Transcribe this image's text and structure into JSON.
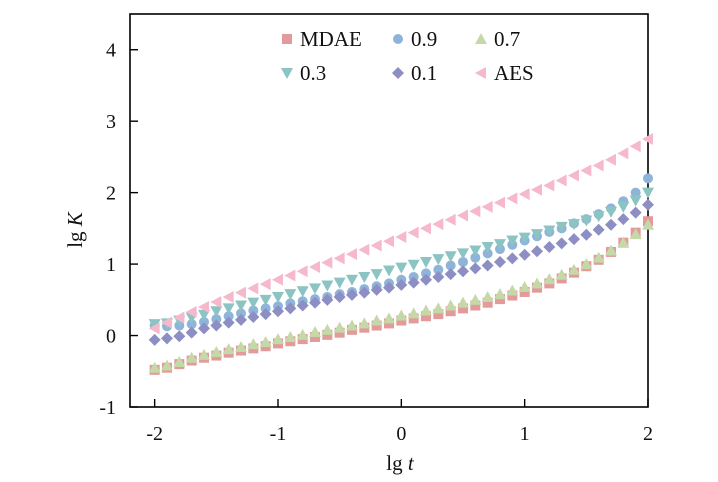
{
  "chart_data": {
    "type": "scatter",
    "title": "",
    "xlabel": {
      "text": "lg ",
      "var": "t"
    },
    "ylabel": {
      "text": "lg ",
      "var": "K"
    },
    "xlim": [
      -2.2,
      2
    ],
    "ylim": [
      -1,
      4.5
    ],
    "xticks": [
      -2,
      -1,
      0,
      1,
      2
    ],
    "xtick_labels": [
      "-2",
      "-1",
      "0",
      "1",
      "2"
    ],
    "yticks": [
      -1,
      0,
      1,
      2,
      3,
      4
    ],
    "ytick_labels": [
      "-1",
      "0",
      "1",
      "2",
      "3",
      "4"
    ],
    "grid": false,
    "legend": "top-center",
    "x": [
      -2.0,
      -1.9,
      -1.8,
      -1.7,
      -1.6,
      -1.5,
      -1.4,
      -1.3,
      -1.2,
      -1.1,
      -1.0,
      -0.9,
      -0.8,
      -0.7,
      -0.6,
      -0.5,
      -0.4,
      -0.3,
      -0.2,
      -0.1,
      0.0,
      0.1,
      0.2,
      0.3,
      0.4,
      0.5,
      0.6,
      0.7,
      0.8,
      0.9,
      1.0,
      1.1,
      1.2,
      1.3,
      1.4,
      1.5,
      1.6,
      1.7,
      1.8,
      1.9,
      2.0
    ],
    "series": [
      {
        "name": "MDAE",
        "marker": "square",
        "color": "#e39a9a",
        "values": [
          -0.48,
          -0.45,
          -0.4,
          -0.35,
          -0.31,
          -0.28,
          -0.24,
          -0.21,
          -0.18,
          -0.15,
          -0.11,
          -0.08,
          -0.05,
          -0.02,
          0.01,
          0.04,
          0.08,
          0.11,
          0.14,
          0.17,
          0.21,
          0.24,
          0.27,
          0.3,
          0.34,
          0.38,
          0.42,
          0.46,
          0.51,
          0.56,
          0.61,
          0.67,
          0.73,
          0.8,
          0.88,
          0.97,
          1.06,
          1.17,
          1.3,
          1.44,
          1.6
        ]
      },
      {
        "name": "0.9",
        "marker": "circle",
        "color": "#8fb4d9",
        "values": [
          0.14,
          0.13,
          0.14,
          0.16,
          0.19,
          0.23,
          0.27,
          0.31,
          0.35,
          0.38,
          0.41,
          0.45,
          0.48,
          0.51,
          0.54,
          0.58,
          0.61,
          0.65,
          0.69,
          0.73,
          0.78,
          0.82,
          0.87,
          0.92,
          0.98,
          1.03,
          1.09,
          1.15,
          1.21,
          1.27,
          1.33,
          1.39,
          1.45,
          1.5,
          1.57,
          1.63,
          1.7,
          1.78,
          1.88,
          2.0,
          2.2
        ]
      },
      {
        "name": "0.7",
        "marker": "triangle-up",
        "color": "#c5d9a8",
        "values": [
          -0.45,
          -0.42,
          -0.37,
          -0.31,
          -0.27,
          -0.23,
          -0.19,
          -0.16,
          -0.12,
          -0.09,
          -0.05,
          -0.02,
          0.01,
          0.05,
          0.08,
          0.11,
          0.14,
          0.17,
          0.21,
          0.24,
          0.28,
          0.31,
          0.35,
          0.38,
          0.42,
          0.46,
          0.5,
          0.54,
          0.58,
          0.63,
          0.68,
          0.73,
          0.79,
          0.85,
          0.92,
          1.0,
          1.09,
          1.19,
          1.3,
          1.42,
          1.55
        ]
      },
      {
        "name": "0.3",
        "marker": "triangle-down",
        "color": "#8cc4c4",
        "values": [
          0.16,
          0.17,
          0.21,
          0.25,
          0.29,
          0.34,
          0.38,
          0.42,
          0.46,
          0.5,
          0.54,
          0.58,
          0.62,
          0.66,
          0.7,
          0.74,
          0.78,
          0.82,
          0.86,
          0.91,
          0.95,
          0.99,
          1.03,
          1.07,
          1.11,
          1.15,
          1.19,
          1.24,
          1.28,
          1.33,
          1.37,
          1.42,
          1.47,
          1.52,
          1.56,
          1.61,
          1.67,
          1.73,
          1.8,
          1.89,
          2.0
        ]
      },
      {
        "name": "0.1",
        "marker": "diamond",
        "color": "#8d8fc4",
        "values": [
          -0.06,
          -0.04,
          -0.01,
          0.04,
          0.1,
          0.14,
          0.18,
          0.22,
          0.26,
          0.3,
          0.34,
          0.38,
          0.42,
          0.46,
          0.5,
          0.54,
          0.57,
          0.6,
          0.64,
          0.67,
          0.71,
          0.74,
          0.78,
          0.82,
          0.86,
          0.9,
          0.94,
          0.98,
          1.03,
          1.08,
          1.13,
          1.18,
          1.24,
          1.29,
          1.35,
          1.41,
          1.48,
          1.55,
          1.63,
          1.72,
          1.83
        ]
      },
      {
        "name": "AES",
        "marker": "triangle-left",
        "color": "#f5b8cc",
        "values": [
          0.1,
          0.18,
          0.25,
          0.33,
          0.4,
          0.47,
          0.54,
          0.6,
          0.66,
          0.72,
          0.78,
          0.84,
          0.9,
          0.96,
          1.02,
          1.08,
          1.14,
          1.2,
          1.26,
          1.32,
          1.38,
          1.44,
          1.5,
          1.56,
          1.62,
          1.68,
          1.74,
          1.8,
          1.86,
          1.92,
          1.98,
          2.04,
          2.1,
          2.17,
          2.24,
          2.31,
          2.38,
          2.46,
          2.55,
          2.65,
          2.75
        ]
      }
    ]
  }
}
